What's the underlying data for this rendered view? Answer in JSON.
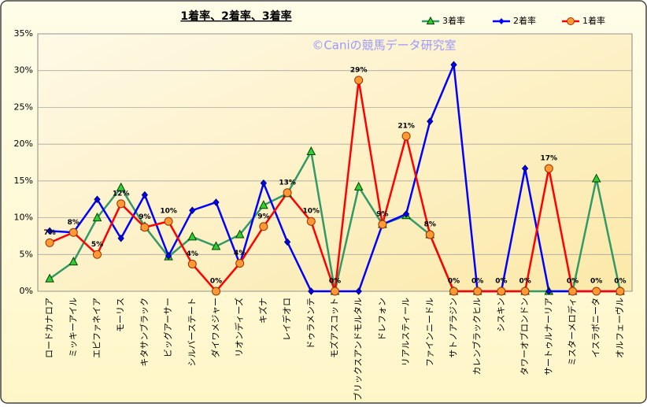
{
  "chart_data": {
    "type": "line",
    "title": "1着率、2着率、3着率",
    "watermark": "©Caniの競馬データ研究室",
    "categories": [
      "ロードカナロア",
      "ミッキーアイル",
      "エピファネイア",
      "モーリス",
      "キタサンブラック",
      "ビッグアーサー",
      "シルバーステート",
      "ダイワメジャー",
      "リオンディーズ",
      "キズナ",
      "レイデオロ",
      "ドゥラメンテ",
      "モズアスコット",
      "ブリックスアンドモルタル",
      "ドレフォン",
      "リアルスティール",
      "ファインニードル",
      "サトノアラジン",
      "カレンブラックヒル",
      "シスキン",
      "タワーオブロンドン",
      "サートゥルナーリア",
      "ミスターメロディ",
      "イスラボニータ",
      "オルフェーヴル"
    ],
    "series": [
      {
        "name": "3着率",
        "color": "#339966",
        "marker": "triangle",
        "values": [
          1.7,
          4.0,
          10.0,
          14.1,
          8.8,
          4.7,
          7.4,
          6.1,
          7.7,
          11.7,
          13.3,
          19.0,
          0,
          14.2,
          9.1,
          10.3,
          7.7,
          0,
          0,
          0,
          0,
          0,
          0,
          15.3,
          0
        ]
      },
      {
        "name": "2着率",
        "color": "#0000ff",
        "marker": "diamond",
        "values": [
          8.2,
          8.0,
          12.5,
          7.2,
          13.1,
          4.8,
          11.0,
          12.1,
          3.7,
          14.7,
          6.7,
          0,
          0,
          0,
          9.1,
          10.5,
          23.1,
          30.8,
          0,
          0,
          16.7,
          0,
          0,
          0,
          0
        ]
      },
      {
        "name": "1着率",
        "color": "#ff0000",
        "marker": "circle",
        "values": [
          6.6,
          8.0,
          5.0,
          11.9,
          8.7,
          9.5,
          3.7,
          0,
          3.8,
          8.8,
          13.4,
          9.5,
          0,
          28.7,
          9.1,
          21.1,
          7.7,
          0,
          0,
          0,
          0,
          16.7,
          0,
          0,
          0
        ],
        "value_labels": [
          "7%",
          "8%",
          "5%",
          "12%",
          "9%",
          "10%",
          "4%",
          "0%",
          "4%",
          "9%",
          "13%",
          "10%",
          "0%",
          "29%",
          "9%",
          "21%",
          "8%",
          "0%",
          "0%",
          "0%",
          "0%",
          "17%",
          "0%",
          "0%",
          "0%"
        ]
      }
    ],
    "ylim": [
      0,
      35
    ],
    "yticks": [
      {
        "value": 0,
        "label": "0%"
      },
      {
        "value": 5,
        "label": "5%"
      },
      {
        "value": 10,
        "label": "10%"
      },
      {
        "value": 15,
        "label": "15%"
      },
      {
        "value": 20,
        "label": "20%"
      },
      {
        "value": 25,
        "label": "25%"
      },
      {
        "value": 30,
        "label": "30%"
      },
      {
        "value": 35,
        "label": "35%"
      }
    ],
    "grid": true
  }
}
